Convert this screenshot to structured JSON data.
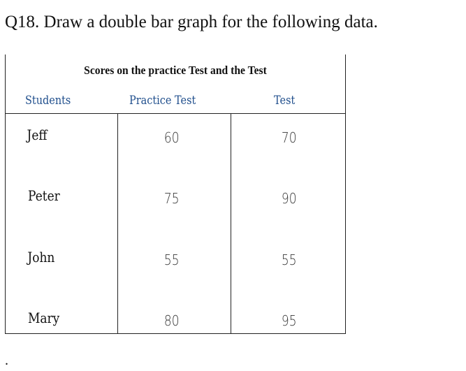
{
  "question": "Q18. Draw a double bar graph for the following data.",
  "table": {
    "title": "Scores on the practice Test and the Test",
    "headers": [
      "Students",
      "Practice Test",
      "Test"
    ],
    "rows": [
      [
        "Jeff",
        "60",
        "70"
      ],
      [
        "Peter",
        "75",
        "90"
      ],
      [
        "John",
        "55",
        "55"
      ],
      [
        "Mary",
        "80",
        "95"
      ]
    ]
  },
  "trailing": "."
}
